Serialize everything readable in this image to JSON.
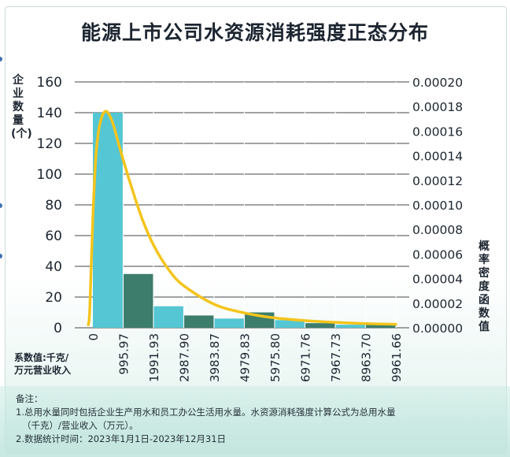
{
  "title": "能源上市公司水资源消耗强度正态分布",
  "y_left_label": "企\n业\n数\n量\n(个)",
  "y_right_label": "概\n率\n密\n度\n函\n数\n值",
  "x_unit_label": "系数值:千克/\n万元营业收入",
  "notes": {
    "heading": "备注：",
    "lines": [
      "1.总用水量同时包括企业生产用水和员工办公生活用水量。水资源消耗强度计算公式为总用水量",
      "（千克）/营业收入（万元）。",
      "2.数据统计时间：2023年1月1日-2023年12月31日"
    ]
  },
  "colors": {
    "bar_teal": "#55c6d3",
    "bar_green": "#3c7d6c",
    "curve": "#f4c41c",
    "grid": "#6b6b6b"
  },
  "chart_data": {
    "type": "bar",
    "x_ticks": [
      "0",
      "995.97",
      "1991.93",
      "2987.90",
      "3983.87",
      "4979.83",
      "5975.80",
      "6971.76",
      "7967.73",
      "8963.70",
      "9961.66"
    ],
    "bins": [
      {
        "from": 0,
        "to": 995.97,
        "count": 140
      },
      {
        "from": 995.97,
        "to": 1991.93,
        "count": 35
      },
      {
        "from": 1991.93,
        "to": 2987.9,
        "count": 14
      },
      {
        "from": 2987.9,
        "to": 3983.87,
        "count": 8
      },
      {
        "from": 3983.87,
        "to": 4979.83,
        "count": 6
      },
      {
        "from": 4979.83,
        "to": 5975.8,
        "count": 10
      },
      {
        "from": 5975.8,
        "to": 6971.76,
        "count": 5
      },
      {
        "from": 6971.76,
        "to": 7967.73,
        "count": 3
      },
      {
        "from": 7967.73,
        "to": 8963.7,
        "count": 2
      },
      {
        "from": 8963.7,
        "to": 9961.66,
        "count": 3
      }
    ],
    "y_left": {
      "min": 0,
      "max": 160,
      "ticks": [
        "0",
        "20",
        "40",
        "60",
        "80",
        "100",
        "120",
        "140",
        "160"
      ]
    },
    "y_right": {
      "min": 0,
      "max": 0.0002,
      "ticks": [
        "0.00000",
        "0.00002",
        "0.00004",
        "0.00006",
        "0.00008",
        "0.00010",
        "0.00012",
        "0.00014",
        "0.00016",
        "0.00018",
        "0.00020"
      ]
    },
    "density_curve": {
      "x": [
        -150,
        -100,
        0,
        100,
        200,
        300,
        400,
        500,
        600,
        700,
        900,
        1200,
        1600,
        2000,
        2500,
        3000,
        4000,
        5000,
        6000,
        7000,
        8000,
        9000,
        9961.66
      ],
      "y": [
        2.5e-06,
        1.6e-05,
        9e-05,
        0.00014,
        0.000162,
        0.000172,
        0.000176,
        0.000175,
        0.00017,
        0.000163,
        0.000145,
        0.00012,
        9e-05,
        6.7e-05,
        4.7e-05,
        3.4e-05,
        1.9e-05,
        1.2e-05,
        8e-06,
        5.8e-06,
        4.4e-06,
        3.4e-06,
        2.8e-06
      ]
    },
    "grid": true,
    "legend": "none"
  }
}
